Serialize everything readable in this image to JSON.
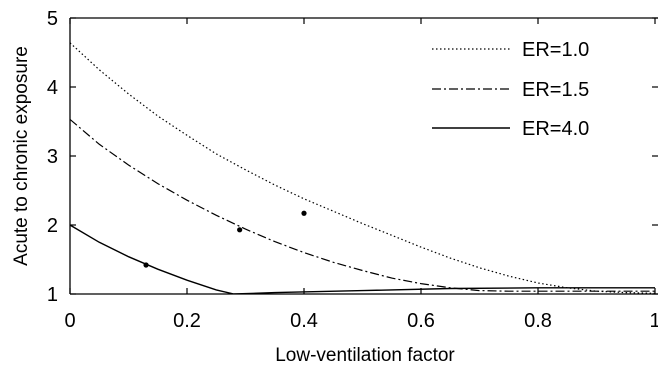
{
  "chart_data": {
    "type": "line",
    "title": "",
    "xlabel": "Low-ventilation factor",
    "ylabel": "Acute to chronic exposure",
    "xlim": [
      0,
      1
    ],
    "ylim": [
      1,
      5
    ],
    "xticks": [
      0,
      0.2,
      0.4,
      0.6,
      0.8,
      1
    ],
    "xtick_labels": [
      "0",
      "0.2",
      "0.4",
      "0.6",
      "0.8",
      "1"
    ],
    "yticks": [
      1,
      2,
      3,
      4,
      5
    ],
    "ytick_labels": [
      "1",
      "2",
      "3",
      "4",
      "5"
    ],
    "grid": false,
    "legend_position": "top-right",
    "colors": {
      "line": "#000000",
      "axes": "#000000",
      "background": "#ffffff"
    },
    "series": [
      {
        "name": "ER=1.0",
        "style": "dotted",
        "x": [
          0,
          0.05,
          0.1,
          0.15,
          0.2,
          0.25,
          0.3,
          0.35,
          0.4,
          0.45,
          0.5,
          0.55,
          0.6,
          0.65,
          0.7,
          0.75,
          0.8,
          0.85,
          0.9,
          0.95,
          1.0
        ],
        "y": [
          4.64,
          4.25,
          3.9,
          3.58,
          3.3,
          3.03,
          2.8,
          2.58,
          2.38,
          2.2,
          2.02,
          1.85,
          1.68,
          1.52,
          1.38,
          1.26,
          1.16,
          1.09,
          1.04,
          1.02,
          1.01
        ]
      },
      {
        "name": "ER=1.5",
        "style": "dashdot",
        "x": [
          0,
          0.05,
          0.1,
          0.15,
          0.2,
          0.25,
          0.3,
          0.35,
          0.4,
          0.45,
          0.5,
          0.55,
          0.6,
          0.65,
          0.7,
          0.75,
          0.8,
          0.85,
          0.9,
          0.95,
          1.0
        ],
        "y": [
          3.53,
          3.17,
          2.87,
          2.6,
          2.36,
          2.14,
          1.94,
          1.76,
          1.6,
          1.46,
          1.34,
          1.23,
          1.15,
          1.09,
          1.05,
          1.04,
          1.04,
          1.04,
          1.04,
          1.04,
          1.04
        ]
      },
      {
        "name": "ER=4.0",
        "style": "solid",
        "x": [
          0,
          0.05,
          0.1,
          0.15,
          0.2,
          0.25,
          0.28,
          0.35,
          0.5,
          0.65,
          0.8,
          0.9,
          1.0
        ],
        "y": [
          2.0,
          1.75,
          1.54,
          1.36,
          1.2,
          1.06,
          1.0,
          1.02,
          1.05,
          1.08,
          1.09,
          1.09,
          1.09
        ]
      }
    ],
    "markers": [
      {
        "x": 0.13,
        "y": 1.42
      },
      {
        "x": 0.29,
        "y": 1.93
      },
      {
        "x": 0.4,
        "y": 2.17
      }
    ]
  }
}
